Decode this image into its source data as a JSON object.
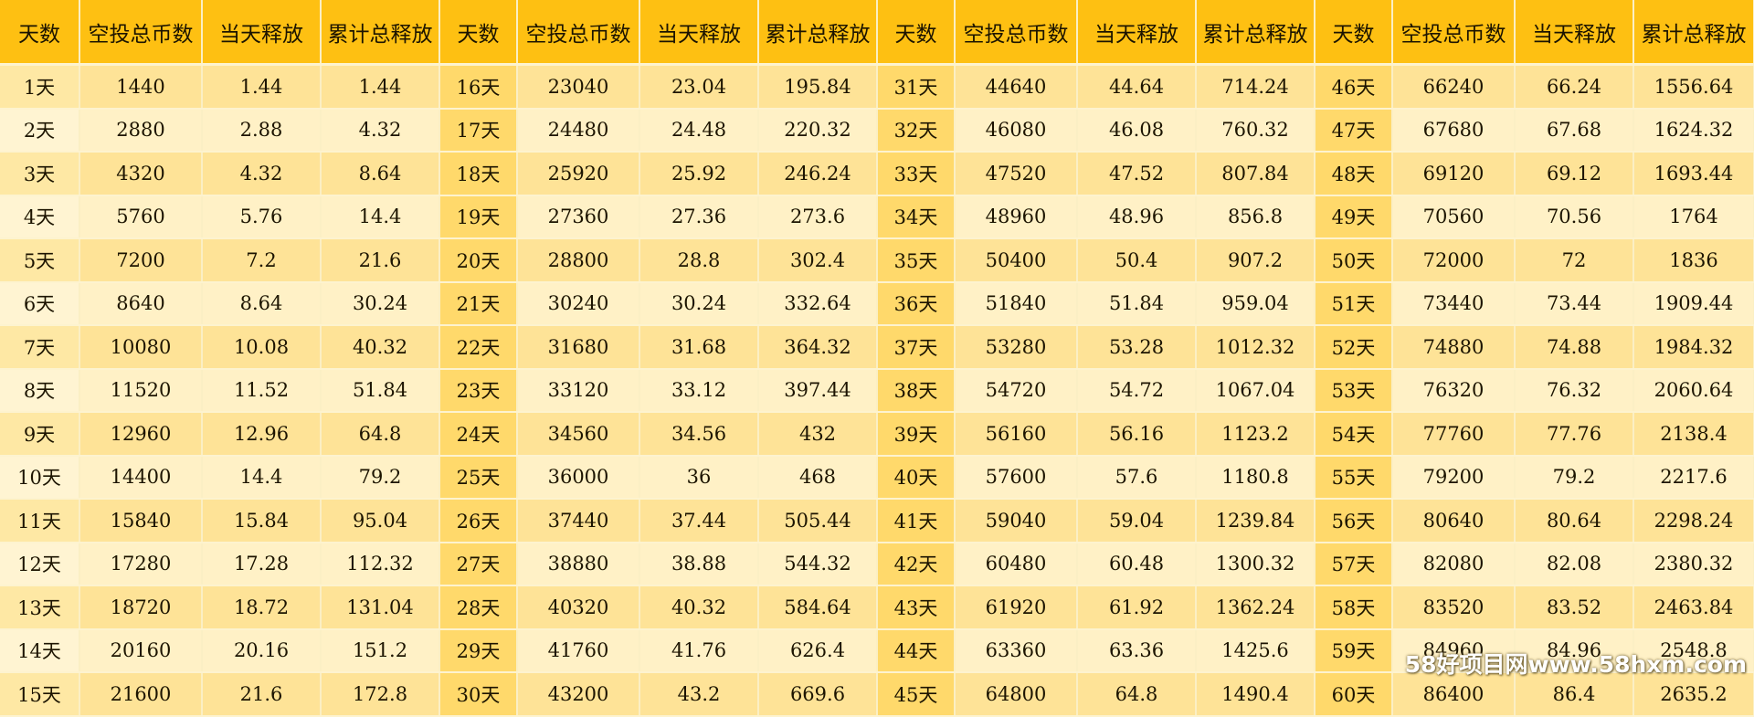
{
  "headers": [
    "天数",
    "空投总币数",
    "当天释放",
    "累计总释放",
    "天数",
    "空投总币数",
    "当天释放",
    "累计总释放",
    "天数",
    "空投总币数",
    "当天释放",
    "累计总释放",
    "天数",
    "空投总币数",
    "当天释放",
    "累计总释放"
  ],
  "rows": [
    [
      "1天",
      "1440",
      "1.44",
      "1.44",
      "16天",
      "23040",
      "23.04",
      "195.84",
      "31天",
      "44640",
      "44.64",
      "714.24",
      "46天",
      "66240",
      "66.24",
      "1556.64"
    ],
    [
      "2天",
      "2880",
      "2.88",
      "4.32",
      "17天",
      "24480",
      "24.48",
      "220.32",
      "32天",
      "46080",
      "46.08",
      "760.32",
      "47天",
      "67680",
      "67.68",
      "1624.32"
    ],
    [
      "3天",
      "4320",
      "4.32",
      "8.64",
      "18天",
      "25920",
      "25.92",
      "246.24",
      "33天",
      "47520",
      "47.52",
      "807.84",
      "48天",
      "69120",
      "69.12",
      "1693.44"
    ],
    [
      "4天",
      "5760",
      "5.76",
      "14.4",
      "19天",
      "27360",
      "27.36",
      "273.6",
      "34天",
      "48960",
      "48.96",
      "856.8",
      "49天",
      "70560",
      "70.56",
      "1764"
    ],
    [
      "5天",
      "7200",
      "7.2",
      "21.6",
      "20天",
      "28800",
      "28.8",
      "302.4",
      "35天",
      "50400",
      "50.4",
      "907.2",
      "50天",
      "72000",
      "72",
      "1836"
    ],
    [
      "6天",
      "8640",
      "8.64",
      "30.24",
      "21天",
      "30240",
      "30.24",
      "332.64",
      "36天",
      "51840",
      "51.84",
      "959.04",
      "51天",
      "73440",
      "73.44",
      "1909.44"
    ],
    [
      "7天",
      "10080",
      "10.08",
      "40.32",
      "22天",
      "31680",
      "31.68",
      "364.32",
      "37天",
      "53280",
      "53.28",
      "1012.32",
      "52天",
      "74880",
      "74.88",
      "1984.32"
    ],
    [
      "8天",
      "11520",
      "11.52",
      "51.84",
      "23天",
      "33120",
      "33.12",
      "397.44",
      "38天",
      "54720",
      "54.72",
      "1067.04",
      "53天",
      "76320",
      "76.32",
      "2060.64"
    ],
    [
      "9天",
      "12960",
      "12.96",
      "64.8",
      "24天",
      "34560",
      "34.56",
      "432",
      "39天",
      "56160",
      "56.16",
      "1123.2",
      "54天",
      "77760",
      "77.76",
      "2138.4"
    ],
    [
      "10天",
      "14400",
      "14.4",
      "79.2",
      "25天",
      "36000",
      "36",
      "468",
      "40天",
      "57600",
      "57.6",
      "1180.8",
      "55天",
      "79200",
      "79.2",
      "2217.6"
    ],
    [
      "11天",
      "15840",
      "15.84",
      "95.04",
      "26天",
      "37440",
      "37.44",
      "505.44",
      "41天",
      "59040",
      "59.04",
      "1239.84",
      "56天",
      "80640",
      "80.64",
      "2298.24"
    ],
    [
      "12天",
      "17280",
      "17.28",
      "112.32",
      "27天",
      "38880",
      "38.88",
      "544.32",
      "42天",
      "60480",
      "60.48",
      "1300.32",
      "57天",
      "82080",
      "82.08",
      "2380.32"
    ],
    [
      "13天",
      "18720",
      "18.72",
      "131.04",
      "28天",
      "40320",
      "40.32",
      "584.64",
      "43天",
      "61920",
      "61.92",
      "1362.24",
      "58天",
      "83520",
      "83.52",
      "2463.84"
    ],
    [
      "14天",
      "20160",
      "20.16",
      "151.2",
      "29天",
      "41760",
      "41.76",
      "626.4",
      "44天",
      "63360",
      "63.36",
      "1425.6",
      "59天",
      "84960",
      "84.96",
      "2548.8"
    ],
    [
      "15天",
      "21600",
      "21.6",
      "172.8",
      "30天",
      "43200",
      "43.2",
      "669.6",
      "45天",
      "64800",
      "64.8",
      "1490.4",
      "60天",
      "86400",
      "86.4",
      "2635.2"
    ]
  ],
  "watermark": "58好项目网www.58hxm.com"
}
